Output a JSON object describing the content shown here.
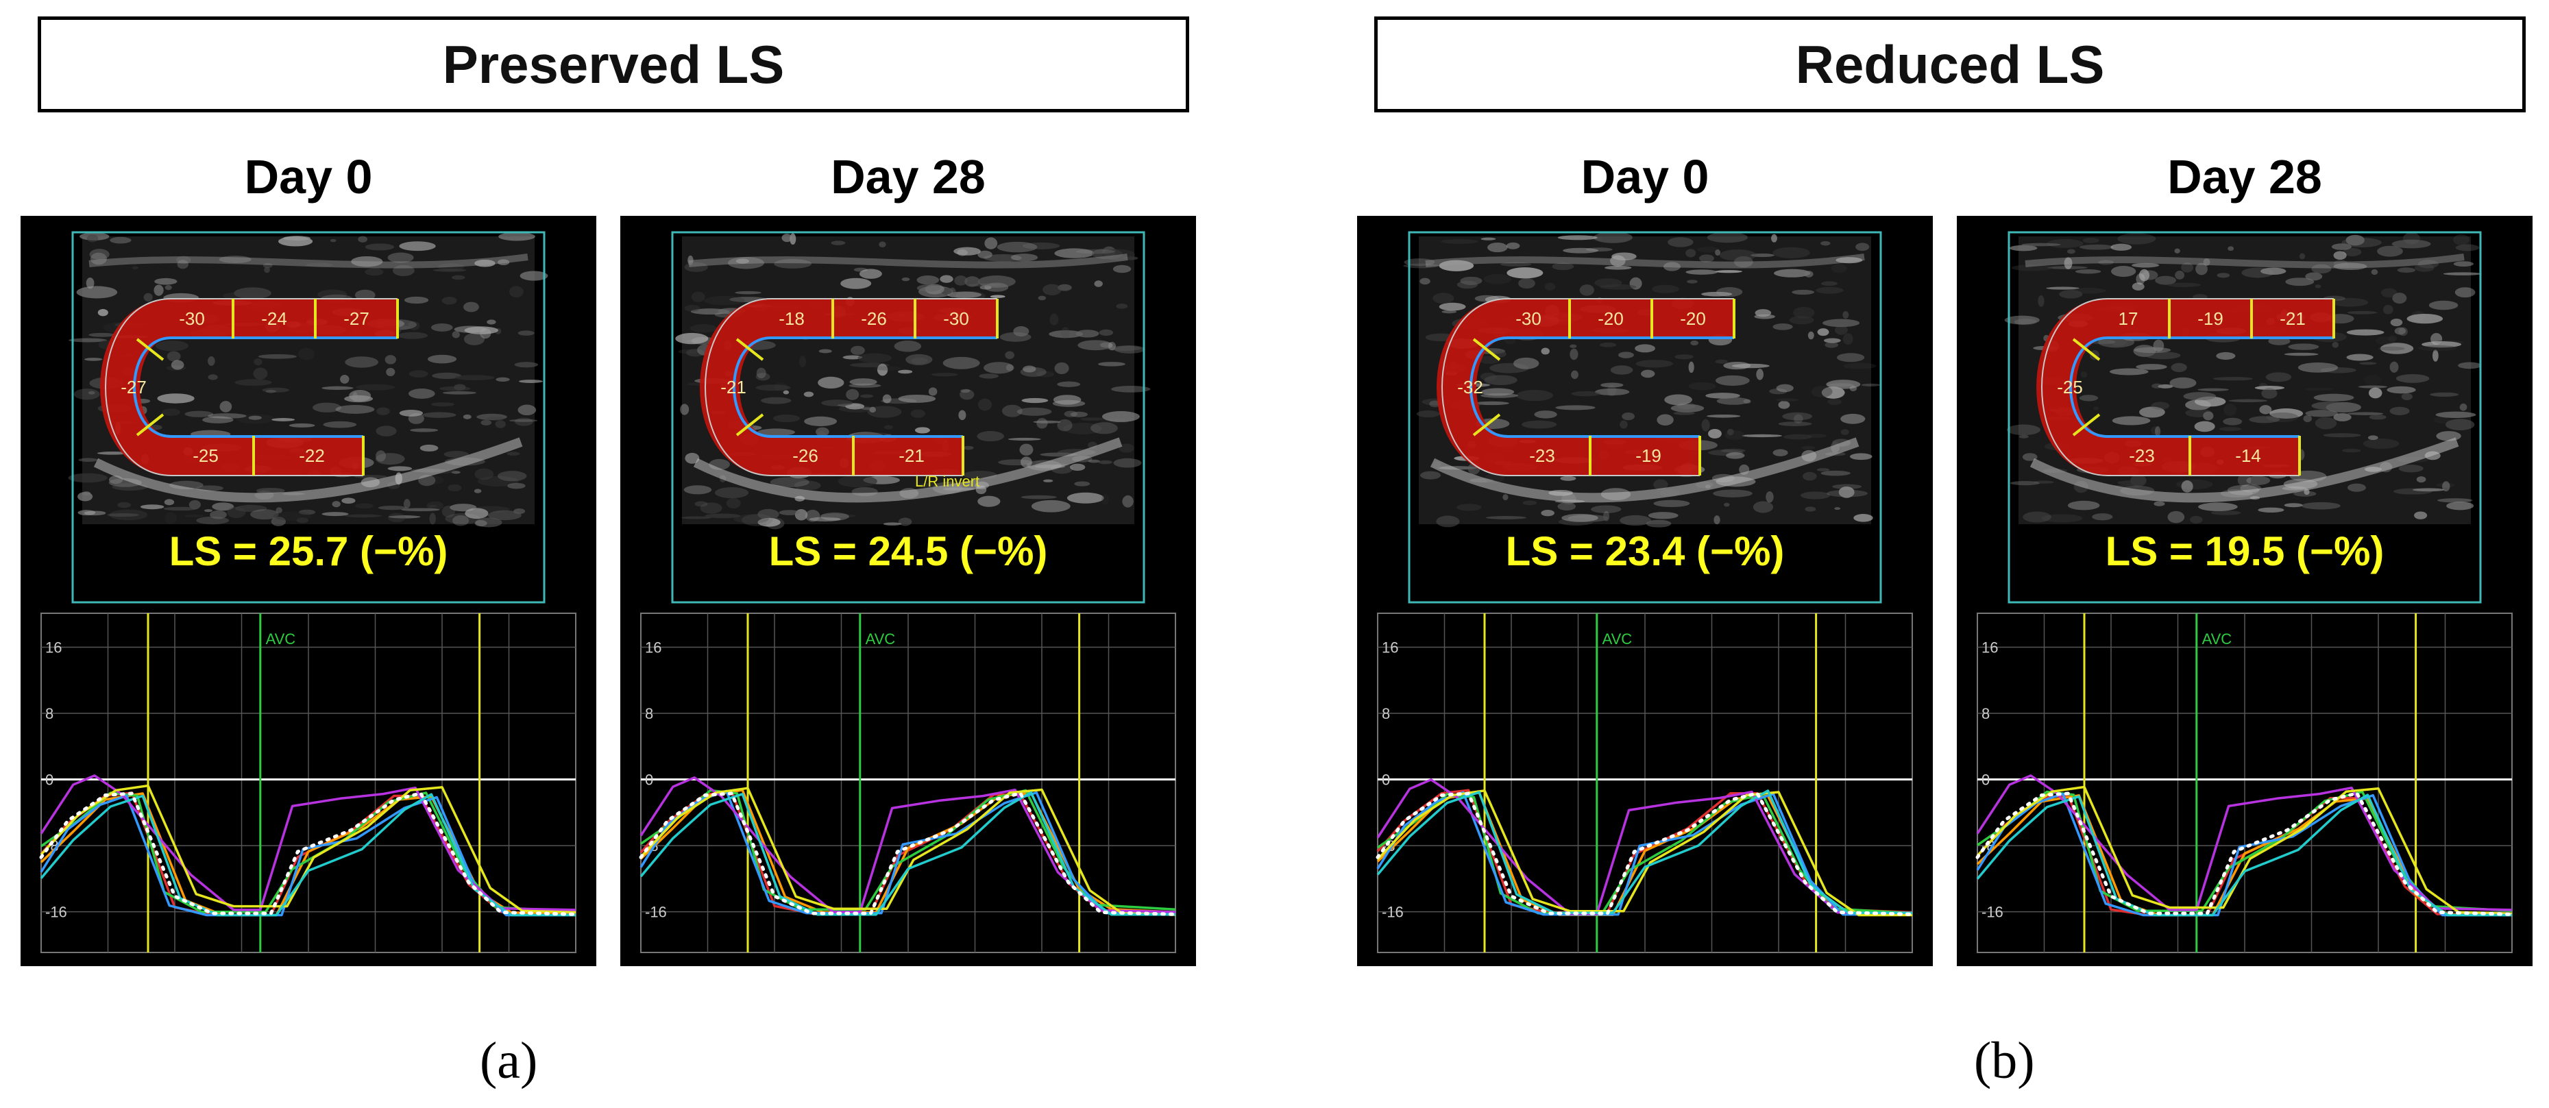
{
  "groups": [
    {
      "title": "Preserved LS",
      "caption": "(a)"
    },
    {
      "title": "Reduced LS",
      "caption": "(b)"
    }
  ],
  "panels": [
    {
      "day": "Day 0",
      "ls": "LS = 25.7 (−%)",
      "segments": [
        "-30",
        "-24",
        "-27",
        "-27",
        "-25",
        "-22"
      ],
      "overlay_text": "",
      "frame_label": "AVC",
      "y_ticks": [
        "16",
        "8",
        "0",
        "-8",
        "-16"
      ]
    },
    {
      "day": "Day 28",
      "ls": "LS = 24.5 (−%)",
      "segments": [
        "-18",
        "-26",
        "-30",
        "-21",
        "-26",
        "-21"
      ],
      "overlay_text": "L/R invert",
      "frame_label": "AVC",
      "y_ticks": [
        "16",
        "8",
        "0",
        "-8",
        "-16"
      ]
    },
    {
      "day": "Day 0",
      "ls": "LS = 23.4 (−%)",
      "segments": [
        "-30",
        "-20",
        "-20",
        "-32",
        "-23",
        "-19"
      ],
      "overlay_text": "",
      "frame_label": "AVC",
      "y_ticks": [
        "16",
        "8",
        "0",
        "-8",
        "-16"
      ]
    },
    {
      "day": "Day 28",
      "ls": "LS = 19.5 (−%)",
      "segments": [
        "17",
        "-19",
        "-21",
        "-25",
        "-23",
        "-14"
      ],
      "overlay_text": "",
      "frame_label": "AVC",
      "y_ticks": [
        "16",
        "8",
        "0",
        "-8",
        "-16"
      ]
    }
  ],
  "colors": {
    "ls_text": "#ffff1e",
    "segment_fill": "#c0140c",
    "segment_border": "#e6e61e",
    "frame": "#3fb8b8",
    "avc_line": "#2ecc40",
    "marker_line": "#e6e61e",
    "curves": [
      "#e03030",
      "#ff9900",
      "#2ecc40",
      "#3399ff",
      "#b833e0",
      "#e6e61e",
      "#22cccc"
    ]
  }
}
